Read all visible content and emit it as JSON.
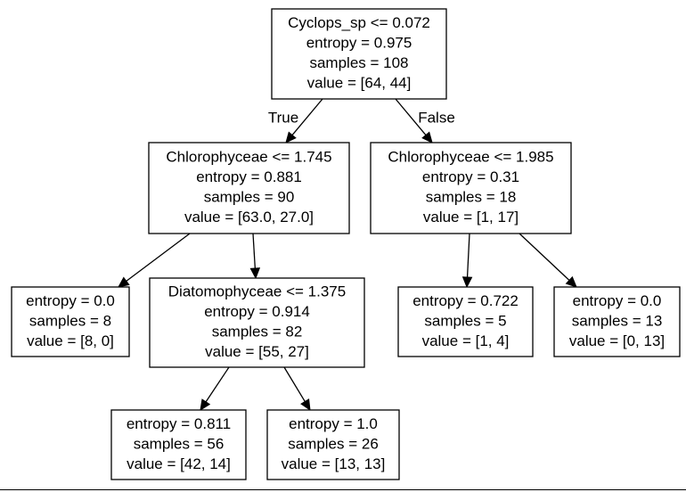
{
  "tree": {
    "nodes": [
      {
        "id": "root",
        "lines": [
          "Cyclops_sp <= 0.072",
          "entropy = 0.975",
          "samples = 108",
          "value = [64, 44]"
        ]
      },
      {
        "id": "n1",
        "lines": [
          "Chlorophyceae <= 1.745",
          "entropy = 0.881",
          "samples = 90",
          "value = [63.0, 27.0]"
        ]
      },
      {
        "id": "n2",
        "lines": [
          "Chlorophyceae <= 1.985",
          "entropy = 0.31",
          "samples = 18",
          "value = [1, 17]"
        ]
      },
      {
        "id": "n3",
        "lines": [
          "entropy = 0.0",
          "samples = 8",
          "value = [8, 0]"
        ]
      },
      {
        "id": "n4",
        "lines": [
          "Diatomophyceae <= 1.375",
          "entropy = 0.914",
          "samples = 82",
          "value = [55, 27]"
        ]
      },
      {
        "id": "n5",
        "lines": [
          "entropy = 0.722",
          "samples = 5",
          "value = [1, 4]"
        ]
      },
      {
        "id": "n6",
        "lines": [
          "entropy = 0.0",
          "samples = 13",
          "value = [0, 13]"
        ]
      },
      {
        "id": "n7",
        "lines": [
          "entropy = 0.811",
          "samples = 56",
          "value = [42, 14]"
        ]
      },
      {
        "id": "n8",
        "lines": [
          "entropy = 1.0",
          "samples = 26",
          "value = [13, 13]"
        ]
      }
    ],
    "edges": [
      {
        "from": "root",
        "to": "n1",
        "label": "True"
      },
      {
        "from": "root",
        "to": "n2",
        "label": "False"
      },
      {
        "from": "n1",
        "to": "n3",
        "label": ""
      },
      {
        "from": "n1",
        "to": "n4",
        "label": ""
      },
      {
        "from": "n2",
        "to": "n5",
        "label": ""
      },
      {
        "from": "n2",
        "to": "n6",
        "label": ""
      },
      {
        "from": "n4",
        "to": "n7",
        "label": ""
      },
      {
        "from": "n4",
        "to": "n8",
        "label": ""
      }
    ]
  }
}
